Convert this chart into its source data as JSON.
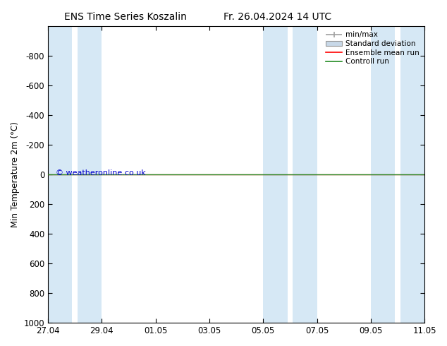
{
  "title_left": "ENS Time Series Koszalin",
  "title_right": "Fr. 26.04.2024 14 UTC",
  "ylabel": "Min Temperature 2m (°C)",
  "ylim_top": -1000,
  "ylim_bottom": 1000,
  "yticks": [
    -800,
    -600,
    -400,
    -200,
    0,
    200,
    400,
    600,
    800,
    1000
  ],
  "xlim_start": 0,
  "xlim_end": 14,
  "xtick_labels": [
    "27.04",
    "29.04",
    "01.05",
    "03.05",
    "05.05",
    "07.05",
    "09.05",
    "11.05"
  ],
  "xtick_positions": [
    0,
    2,
    4,
    6,
    8,
    10,
    12,
    14
  ],
  "shade_intervals": [
    [
      0.0,
      0.9
    ],
    [
      1.1,
      2.0
    ],
    [
      8.0,
      8.9
    ],
    [
      9.1,
      10.0
    ],
    [
      12.0,
      12.9
    ],
    [
      13.1,
      14.0
    ]
  ],
  "shade_color": "#d6e8f5",
  "ensemble_mean_color": "#ff0000",
  "control_run_color": "#228b22",
  "minmax_color": "#a0a0a0",
  "std_dev_color": "#c8d8e8",
  "watermark": "© weatheronline.co.uk",
  "watermark_color": "#0000cc",
  "bg_color": "#ffffff",
  "font_size": 8.5,
  "title_fontsize": 10
}
